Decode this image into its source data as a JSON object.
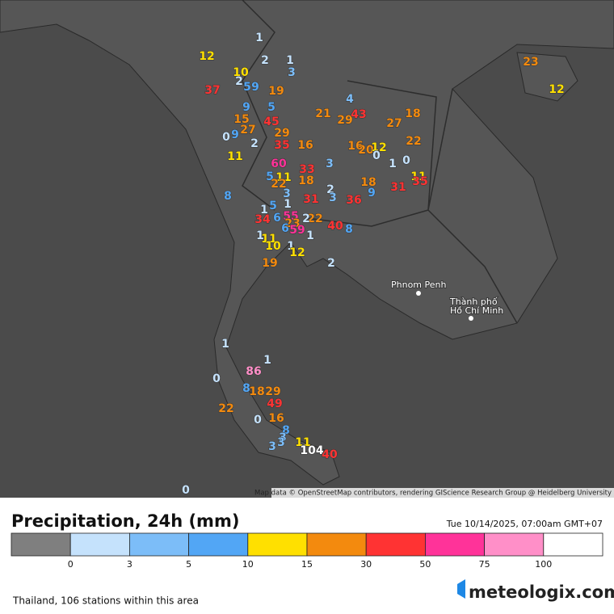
{
  "map": {
    "places": [
      "Phnom Penh",
      "Thành phố",
      "Hồ Chí Minh"
    ],
    "attribution": "Map data © OpenStreetMap contributors, rendering GIScience Research Group @ Heidelberg University"
  },
  "stations": [
    1,
    12,
    2,
    1,
    3,
    10,
    2,
    5,
    9,
    37,
    19,
    4,
    9,
    5,
    21,
    29,
    43,
    18,
    27,
    15,
    27,
    9,
    0,
    45,
    29,
    2,
    35,
    16,
    16,
    20,
    12,
    0,
    1,
    0,
    22,
    11,
    3,
    60,
    5,
    11,
    22,
    33,
    18,
    18,
    11,
    35,
    31,
    8,
    3,
    1,
    5,
    1,
    31,
    2,
    3,
    36,
    9,
    34,
    6,
    55,
    23,
    59,
    6,
    22,
    2,
    40,
    8,
    1,
    1,
    11,
    10,
    1,
    12,
    19,
    2,
    1,
    1,
    86,
    0,
    8,
    18,
    29,
    49,
    22,
    0,
    16,
    8,
    3,
    3,
    3,
    11,
    104,
    40,
    0,
    23,
    12
  ],
  "header": {
    "title": "Precipitation, 24h (mm)",
    "timestamp": "Tue 10/14/2025, 07:00am GMT+07"
  },
  "legend": {
    "thresholds": [
      0,
      3,
      5,
      10,
      15,
      30,
      50,
      75,
      100
    ],
    "colors": [
      "#7f7f7f",
      "#c5e2fc",
      "#7cbdf8",
      "#52a6f5",
      "#ffe000",
      "#f38a0e",
      "#ff3333",
      "#ff3399",
      "#ff8fc8",
      "#ffffff"
    ]
  },
  "footer": {
    "note": "Thailand, 106 stations within this area",
    "brand": "meteologix.com"
  }
}
